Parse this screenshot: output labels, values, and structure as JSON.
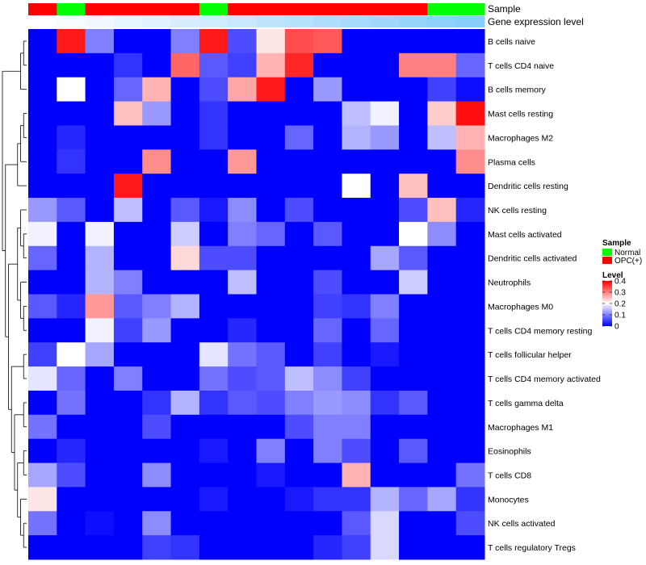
{
  "chart_data": {
    "type": "heatmap",
    "title": "",
    "annotation_rows": [
      "Sample",
      "Gene expression level"
    ],
    "sample_groups": [
      "OPC(+)",
      "Normal",
      "OPC(+)",
      "OPC(+)",
      "OPC(+)",
      "OPC(+)",
      "Normal",
      "OPC(+)",
      "OPC(+)",
      "OPC(+)",
      "OPC(+)",
      "OPC(+)",
      "OPC(+)",
      "OPC(+)",
      "Normal",
      "Normal"
    ],
    "gene_expression_level": [
      0.0,
      0.07,
      0.13,
      0.2,
      0.27,
      0.33,
      0.4,
      0.47,
      0.53,
      0.6,
      0.67,
      0.73,
      0.8,
      0.87,
      0.93,
      1.0
    ],
    "rows": [
      "B cells naive",
      "T cells CD4 naive",
      "B cells memory",
      "Mast cells resting",
      "Macrophages M2",
      "Plasma cells",
      "Dendritic cells resting",
      "NK cells resting",
      "Mast cells activated",
      "Dendritic cells activated",
      "Neutrophils",
      "Macrophages M0",
      "T cells CD4 memory resting",
      "T cells follicular helper",
      "T cells CD4 memory activated",
      "T cells gamma delta",
      "Macrophages M1",
      "Eosinophils",
      "T cells CD8",
      "Monocytes",
      "NK cells activated",
      "T cells regulatory  Tregs"
    ],
    "values": [
      [
        0,
        0.38,
        0.1,
        0,
        0,
        0.1,
        0.38,
        0.06,
        0.22,
        0.34,
        0.33,
        0,
        0,
        0,
        0,
        0
      ],
      [
        0,
        0,
        0,
        0.04,
        0,
        0.32,
        0.07,
        0.05,
        0.26,
        0.37,
        0,
        0,
        0,
        0.3,
        0.3,
        0.08
      ],
      [
        0,
        0.2,
        0,
        0.08,
        0.26,
        0,
        0.06,
        0.27,
        0.38,
        0,
        0.12,
        0,
        0,
        0,
        0.05,
        0.01
      ],
      [
        0,
        0,
        0,
        0.25,
        0.12,
        0,
        0.04,
        0,
        0,
        0,
        0,
        0.15,
        0.19,
        0,
        0.24,
        0.39
      ],
      [
        0,
        0.03,
        0,
        0,
        0,
        0,
        0.04,
        0,
        0,
        0.08,
        0,
        0.14,
        0.12,
        0,
        0.15,
        0.26
      ],
      [
        0,
        0.04,
        0,
        0,
        0.29,
        0,
        0,
        0.28,
        0,
        0,
        0,
        0,
        0,
        0,
        0,
        0.29
      ],
      [
        0,
        0,
        0,
        0.38,
        0,
        0,
        0,
        0,
        0,
        0,
        0,
        0.2,
        0,
        0.25,
        0,
        0
      ],
      [
        0.12,
        0.07,
        0,
        0.15,
        0,
        0.07,
        0.02,
        0.11,
        0,
        0.06,
        0,
        0,
        0,
        0.06,
        0.25,
        0.03
      ],
      [
        0.19,
        0,
        0.19,
        0,
        0,
        0.16,
        0,
        0.1,
        0.08,
        0,
        0.07,
        0,
        0,
        0.2,
        0.11,
        0
      ],
      [
        0.08,
        0,
        0.14,
        0,
        0,
        0.23,
        0.06,
        0.06,
        0,
        0,
        0,
        0,
        0.13,
        0.07,
        0,
        0
      ],
      [
        0,
        0,
        0.14,
        0.1,
        0,
        0,
        0,
        0.15,
        0,
        0,
        0.06,
        0,
        0,
        0.16,
        0,
        0
      ],
      [
        0.07,
        0.03,
        0.28,
        0.07,
        0.1,
        0.14,
        0,
        0,
        0,
        0,
        0.05,
        0.04,
        0.1,
        0,
        0,
        0
      ],
      [
        0,
        0,
        0.19,
        0.05,
        0.12,
        0,
        0,
        0.03,
        0,
        0,
        0.08,
        0,
        0.08,
        0,
        0,
        0
      ],
      [
        0.05,
        0.2,
        0.13,
        0,
        0,
        0,
        0.18,
        0.09,
        0.07,
        0,
        0.05,
        0,
        0.02,
        0,
        0,
        0
      ],
      [
        0.18,
        0.08,
        0,
        0.1,
        0,
        0,
        0.09,
        0.06,
        0.07,
        0.15,
        0.11,
        0.05,
        0,
        0,
        0,
        0
      ],
      [
        0,
        0.09,
        0,
        0,
        0.04,
        0.14,
        0.04,
        0.07,
        0.06,
        0.1,
        0.12,
        0.11,
        0.04,
        0.07,
        0,
        0
      ],
      [
        0.09,
        0,
        0,
        0,
        0.06,
        0,
        0,
        0,
        0,
        0.06,
        0.1,
        0.1,
        0,
        0,
        0,
        0
      ],
      [
        0,
        0.03,
        0,
        0,
        0,
        0,
        0.02,
        0,
        0.1,
        0,
        0.1,
        0.06,
        0,
        0.07,
        0,
        0
      ],
      [
        0.13,
        0.06,
        0,
        0,
        0.11,
        0,
        0,
        0,
        0.02,
        0,
        0,
        0.26,
        0,
        0,
        0,
        0.09
      ],
      [
        0.22,
        0,
        0,
        0,
        0,
        0,
        0.02,
        0,
        0,
        0.02,
        0.04,
        0.04,
        0.14,
        0.08,
        0.13,
        0.04
      ],
      [
        0.09,
        0,
        0.01,
        0,
        0.11,
        0,
        0,
        0,
        0,
        0,
        0,
        0.07,
        0.17,
        0,
        0,
        0.06
      ],
      [
        0,
        0,
        0,
        0,
        0.05,
        0.04,
        0,
        0,
        0,
        0,
        0.03,
        0.05,
        0.17,
        0,
        0,
        0
      ]
    ],
    "legend": {
      "sample": {
        "title": "Sample",
        "entries": [
          {
            "label": "Normal",
            "color": "#00ff00"
          },
          {
            "label": "OPC(+)",
            "color": "#ff0000"
          }
        ]
      },
      "level": {
        "title": "Level",
        "ticks": [
          "0",
          "0.1",
          "0.2",
          "0.3",
          "0.4"
        ],
        "tick_values": [
          0,
          0.1,
          0.2,
          0.3,
          0.4
        ],
        "range": [
          0,
          0.4
        ]
      }
    },
    "colors": {
      "low": "#0000ff",
      "mid": "#ffffff",
      "high": "#ff0000",
      "normal": "#00ff00",
      "opc": "#ff0000",
      "expr_low": "#ffffff",
      "expr_high": "#87cefa"
    }
  }
}
